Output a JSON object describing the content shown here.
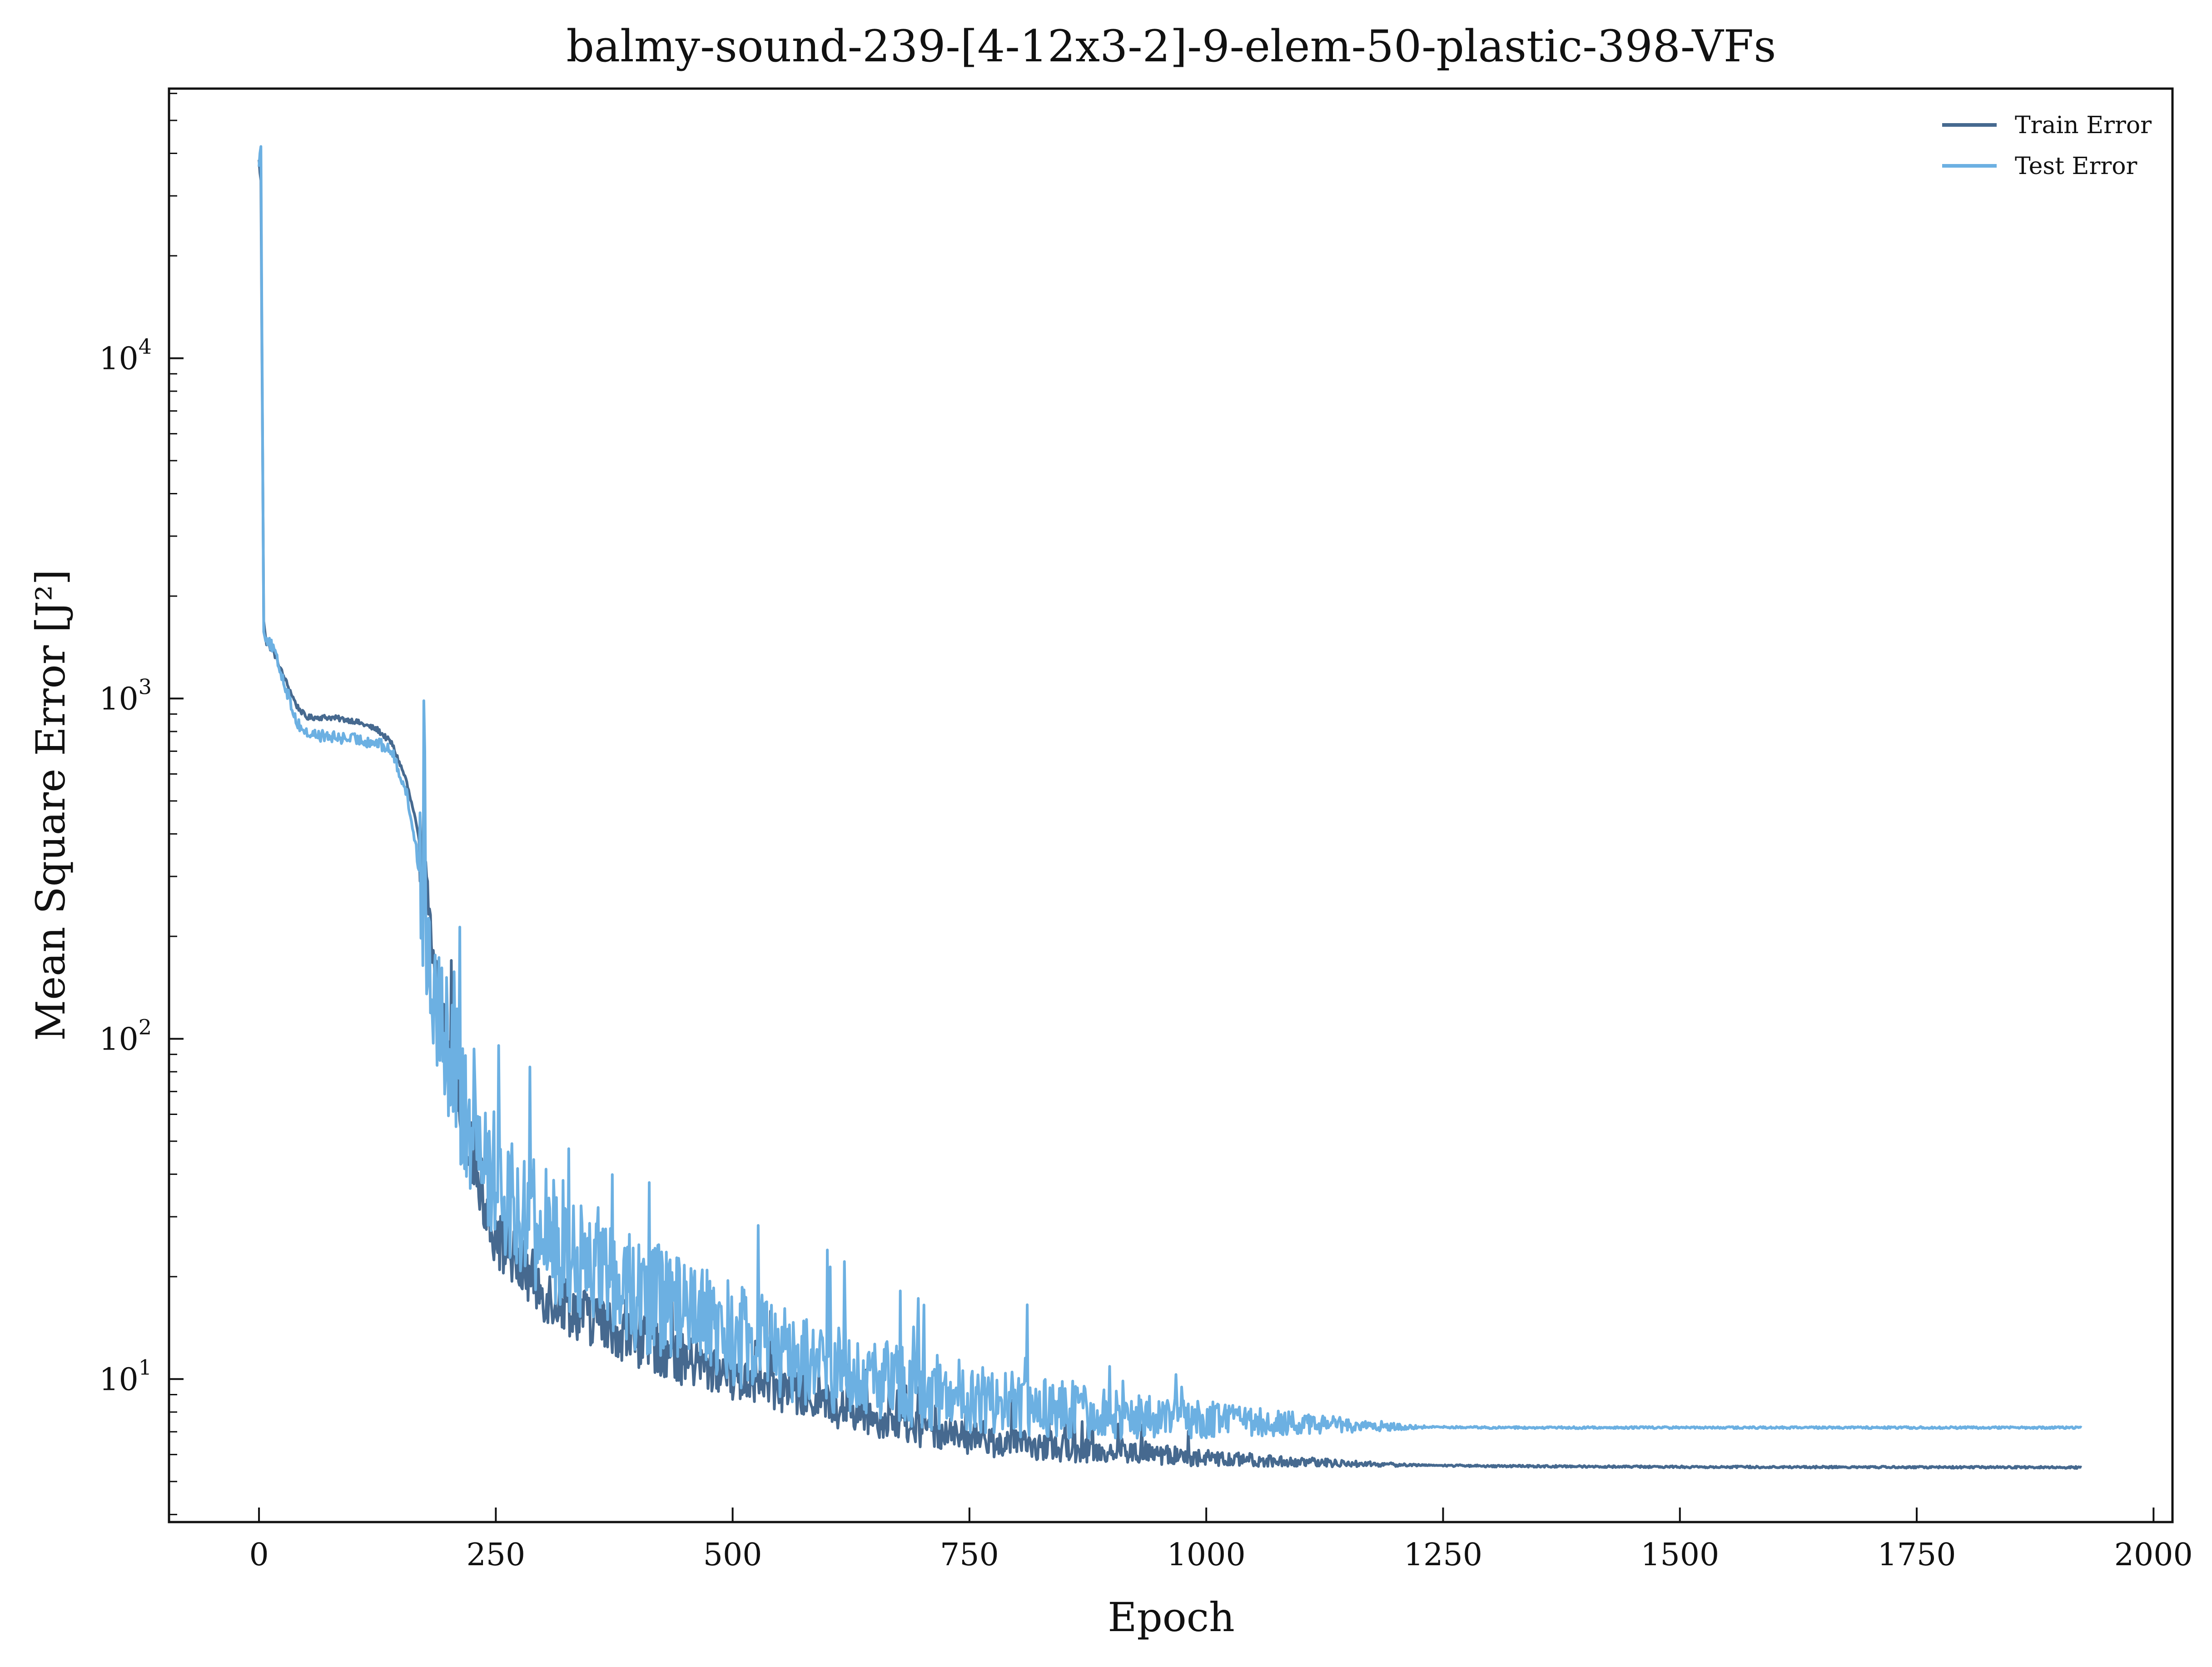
{
  "chart_data": {
    "type": "line",
    "title": "balmy-sound-239-[4-12x3-2]-9-elem-50-plastic-398-VFs",
    "xlabel": "Epoch",
    "ylabel": "Mean Square Error [J²]",
    "yscale": "log",
    "xlim": [
      -95,
      2020
    ],
    "ylim": [
      3.8,
      62000
    ],
    "xticks": [
      0,
      250,
      500,
      750,
      1000,
      1250,
      1500,
      1750,
      2000
    ],
    "yticks": [
      {
        "value": 10,
        "base": "10",
        "exp": "1"
      },
      {
        "value": 100,
        "base": "10",
        "exp": "2"
      },
      {
        "value": 1000,
        "base": "10",
        "exp": "3"
      },
      {
        "value": 10000,
        "base": "10",
        "exp": "4"
      }
    ],
    "grid": false,
    "legend_position": "top-right",
    "x_max_epoch": 1924,
    "series": [
      {
        "name": "Train Error",
        "color": "#46698f",
        "noise": 0.1,
        "keypoints": [
          [
            0,
            38000
          ],
          [
            2,
            33000
          ],
          [
            5,
            1700
          ],
          [
            8,
            1450
          ],
          [
            15,
            1380
          ],
          [
            25,
            1180
          ],
          [
            40,
            950
          ],
          [
            50,
            880
          ],
          [
            75,
            880
          ],
          [
            100,
            860
          ],
          [
            125,
            810
          ],
          [
            140,
            740
          ],
          [
            155,
            580
          ],
          [
            165,
            440
          ],
          [
            175,
            300
          ],
          [
            185,
            160
          ],
          [
            200,
            90
          ],
          [
            220,
            50
          ],
          [
            250,
            26
          ],
          [
            300,
            18
          ],
          [
            350,
            15
          ],
          [
            400,
            13
          ],
          [
            450,
            11.3
          ],
          [
            500,
            10.2
          ],
          [
            550,
            9.3
          ],
          [
            600,
            8.4
          ],
          [
            650,
            7.7
          ],
          [
            700,
            7.1
          ],
          [
            750,
            6.7
          ],
          [
            800,
            6.4
          ],
          [
            900,
            6.1
          ],
          [
            950,
            6.0
          ],
          [
            1000,
            5.85
          ],
          [
            1100,
            5.7
          ],
          [
            1200,
            5.6
          ],
          [
            1300,
            5.55
          ],
          [
            1500,
            5.52
          ],
          [
            1924,
            5.5
          ]
        ]
      },
      {
        "name": "Test Error",
        "color": "#6cb0e2",
        "noise": 0.22,
        "keypoints": [
          [
            0,
            38000
          ],
          [
            2,
            41000
          ],
          [
            5,
            1600
          ],
          [
            8,
            1500
          ],
          [
            15,
            1400
          ],
          [
            25,
            1150
          ],
          [
            40,
            850
          ],
          [
            50,
            790
          ],
          [
            75,
            770
          ],
          [
            100,
            760
          ],
          [
            125,
            740
          ],
          [
            140,
            700
          ],
          [
            155,
            540
          ],
          [
            165,
            380
          ],
          [
            175,
            230
          ],
          [
            185,
            150
          ],
          [
            200,
            95
          ],
          [
            220,
            58
          ],
          [
            250,
            38
          ],
          [
            300,
            27
          ],
          [
            350,
            22
          ],
          [
            400,
            18
          ],
          [
            450,
            15.5
          ],
          [
            500,
            13.5
          ],
          [
            550,
            12
          ],
          [
            600,
            10.8
          ],
          [
            650,
            10
          ],
          [
            700,
            9.3
          ],
          [
            750,
            8.8
          ],
          [
            800,
            8.4
          ],
          [
            900,
            7.9
          ],
          [
            1000,
            7.6
          ],
          [
            1100,
            7.4
          ],
          [
            1200,
            7.25
          ],
          [
            1300,
            7.2
          ],
          [
            1924,
            7.2
          ]
        ]
      }
    ]
  }
}
